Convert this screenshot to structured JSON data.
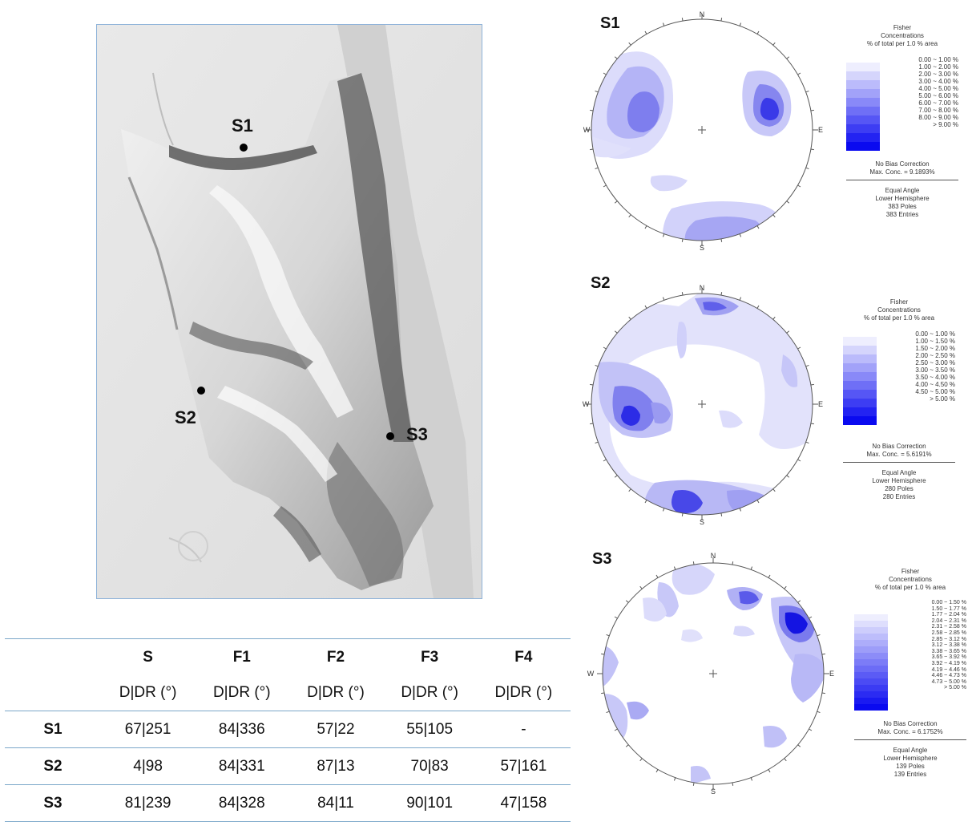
{
  "map": {
    "sites": [
      {
        "label": "S1"
      },
      {
        "label": "S2"
      },
      {
        "label": "S3"
      }
    ]
  },
  "table": {
    "columns": [
      "",
      "S",
      "F1",
      "F2",
      "F3",
      "F4"
    ],
    "units": [
      "",
      "D|DR (°)",
      "D|DR (°)",
      "D|DR (°)",
      "D|DR (°)",
      "D|DR (°)"
    ],
    "rows": [
      {
        "site": "S1",
        "values": [
          "67|251",
          "84|336",
          "57|22",
          "55|105",
          "-"
        ]
      },
      {
        "site": "S2",
        "values": [
          "4|98",
          "84|331",
          "87|13",
          "70|83",
          "57|161"
        ]
      },
      {
        "site": "S3",
        "values": [
          "81|239",
          "84|328",
          "84|11",
          "90|101",
          "47|158"
        ]
      }
    ]
  },
  "stereonets": [
    {
      "title": "S1",
      "directions": {
        "n": "N",
        "e": "E",
        "s": "S",
        "w": "W"
      },
      "legend": {
        "heading": [
          "Fisher",
          "Concentrations",
          "% of total per 1.0 % area"
        ],
        "ranges": [
          "0.00 ~ 1.00 %",
          "1.00 ~ 2.00 %",
          "2.00 ~ 3.00 %",
          "3.00 ~ 4.00 %",
          "4.00 ~ 5.00 %",
          "5.00 ~ 6.00 %",
          "6.00 ~ 7.00 %",
          "7.00 ~ 8.00 %",
          "8.00 ~ 9.00 %",
          "> 9.00 %"
        ],
        "bias": "No Bias Correction",
        "max_conc": "Max. Conc. = 9.1893%",
        "projection": "Equal Angle",
        "hemisphere": "Lower Hemisphere",
        "poles": "383 Poles",
        "entries": "383 Entries"
      }
    },
    {
      "title": "S2",
      "directions": {
        "n": "N",
        "e": "E",
        "s": "S",
        "w": "W"
      },
      "legend": {
        "heading": [
          "Fisher",
          "Concentrations",
          "% of total per 1.0 % area"
        ],
        "ranges": [
          "0.00 ~ 1.00 %",
          "1.00 ~ 1.50 %",
          "1.50 ~ 2.00 %",
          "2.00 ~ 2.50 %",
          "2.50 ~ 3.00 %",
          "3.00 ~ 3.50 %",
          "3.50 ~ 4.00 %",
          "4.00 ~ 4.50 %",
          "4.50 ~ 5.00 %",
          "> 5.00 %"
        ],
        "bias": "No Bias Correction",
        "max_conc": "Max. Conc. = 5.6191%",
        "projection": "Equal Angle",
        "hemisphere": "Lower Hemisphere",
        "poles": "280 Poles",
        "entries": "280 Entries"
      }
    },
    {
      "title": "S3",
      "directions": {
        "n": "N",
        "e": "E",
        "s": "S",
        "w": "W"
      },
      "legend": {
        "heading": [
          "Fisher",
          "Concentrations",
          "% of total per 1.0 % area"
        ],
        "ranges": [
          "0.00 ~ 1.50 %",
          "1.50 ~ 1.77 %",
          "1.77 ~ 2.04 %",
          "2.04 ~ 2.31 %",
          "2.31 ~ 2.58 %",
          "2.58 ~ 2.85 %",
          "2.85 ~ 3.12 %",
          "3.12 ~ 3.38 %",
          "3.38 ~ 3.65 %",
          "3.65 ~ 3.92 %",
          "3.92 ~ 4.19 %",
          "4.19 ~ 4.46 %",
          "4.46 ~ 4.73 %",
          "4.73 ~ 5.00 %",
          "> 5.00 %"
        ],
        "bias": "No Bias Correction",
        "max_conc": "Max. Conc. = 6.1752%",
        "projection": "Equal Angle",
        "hemisphere": "Lower Hemisphere",
        "poles": "139 Poles",
        "entries": "139 Entries"
      }
    }
  ],
  "colors": {
    "scale_light": "#eeeefe",
    "scale_dark": "#0a0af0",
    "table_rule": "#7ba7c9",
    "map_border": "#8fb3d9"
  }
}
